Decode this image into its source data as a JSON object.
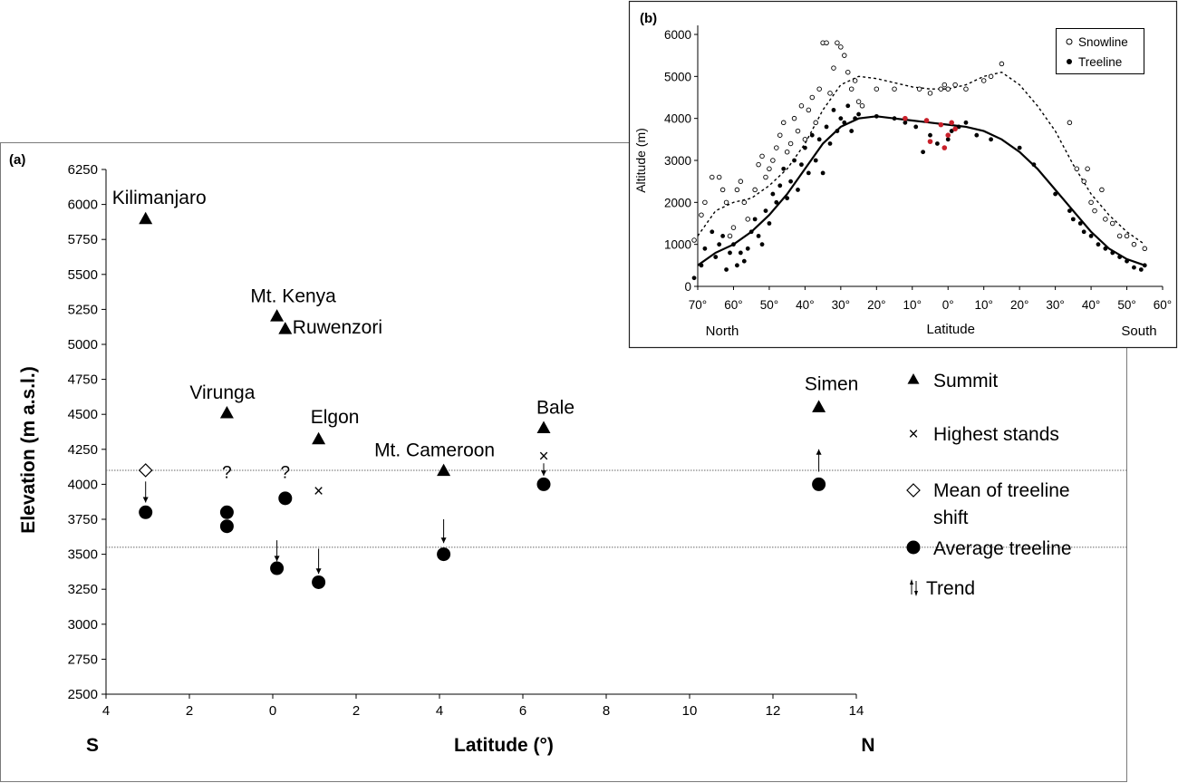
{
  "chart_data": [
    {
      "panel_label": "(a)",
      "type": "scatter",
      "xlabel": "Latitude (°)",
      "ylabel": "Elevation (m a.s.l.)",
      "x_direction_left": "S",
      "x_direction_right": "N",
      "xlim": [
        -4,
        14
      ],
      "ylim": [
        2500,
        6250
      ],
      "x_ticks": [
        -4,
        -2,
        0,
        2,
        4,
        6,
        8,
        10,
        12,
        14
      ],
      "x_tick_labels": [
        "4",
        "2",
        "0",
        "2",
        "4",
        "6",
        "8",
        "10",
        "12",
        "14"
      ],
      "y_ticks": [
        2500,
        2750,
        3000,
        3250,
        3500,
        3750,
        4000,
        4250,
        4500,
        4750,
        5000,
        5250,
        5500,
        5750,
        6000,
        6250
      ],
      "y_tick_labels": [
        "2500",
        "2750",
        "3000",
        "3250",
        "3500",
        "3750",
        "4000",
        "4250",
        "4500",
        "4750",
        "5000",
        "5250",
        "5500",
        "5750",
        "6000",
        "6250"
      ],
      "reference_lines": [
        4100,
        3550
      ],
      "summits": [
        {
          "name": "Kilimanjaro",
          "x": -3.05,
          "y": 5895
        },
        {
          "name": "Mt. Kenya",
          "x": 0.1,
          "y": 5199
        },
        {
          "name": "Ruwenzori",
          "x": 0.3,
          "y": 5109
        },
        {
          "name": "Virunga",
          "x": -1.1,
          "y": 4507
        },
        {
          "name": "Elgon",
          "x": 1.1,
          "y": 4321
        },
        {
          "name": "Mt. Cameroon",
          "x": 4.1,
          "y": 4095
        },
        {
          "name": "Bale",
          "x": 6.5,
          "y": 4400
        },
        {
          "name": "Simen",
          "x": 13.1,
          "y": 4550
        }
      ],
      "highest_stands": [
        {
          "x": 1.1,
          "y": 3950
        },
        {
          "x": 6.5,
          "y": 4200
        }
      ],
      "treeline_shift_mean": [
        {
          "x": -3.05,
          "y": 4100
        }
      ],
      "average_treeline": [
        {
          "x": -3.05,
          "y": 3800
        },
        {
          "x": -1.1,
          "y": 3800
        },
        {
          "x": -1.1,
          "y": 3700
        },
        {
          "x": 0.1,
          "y": 3400
        },
        {
          "x": 0.3,
          "y": 3900
        },
        {
          "x": 1.1,
          "y": 3300
        },
        {
          "x": 4.1,
          "y": 3500
        },
        {
          "x": 6.5,
          "y": 4000
        },
        {
          "x": 13.1,
          "y": 4000
        }
      ],
      "question_marks": [
        {
          "text": "?",
          "x": -1.1,
          "y": 4090
        },
        {
          "text": "?",
          "x": 0.3,
          "y": 4090
        }
      ],
      "trends": [
        {
          "x": -3.05,
          "from": 4020,
          "to": 3870
        },
        {
          "x": 0.1,
          "from": 3600,
          "to": 3450
        },
        {
          "x": 1.1,
          "from": 3540,
          "to": 3360
        },
        {
          "x": 4.1,
          "from": 3750,
          "to": 3580
        },
        {
          "x": 6.5,
          "from": 4150,
          "to": 4060
        },
        {
          "x": 13.1,
          "from": 4090,
          "to": 4250
        }
      ],
      "legend": {
        "summit": "Summit",
        "highest_stands": "Highest stands",
        "treeline_shift_line1": "Mean of treeline",
        "treeline_shift_line2": "shift",
        "average_treeline": "Average treeline",
        "trend": "Trend",
        "placement": "right"
      }
    },
    {
      "panel_label": "(b)",
      "type": "scatter",
      "xlabel": "Latitude",
      "ylabel": "Altitude (m)",
      "x_direction_left": "North",
      "x_direction_right": "South",
      "xlim": [
        -70,
        60
      ],
      "ylim": [
        0,
        6000
      ],
      "x_ticks": [
        -70,
        -60,
        -50,
        -40,
        -30,
        -20,
        -10,
        0,
        10,
        20,
        30,
        40,
        50,
        60
      ],
      "x_tick_labels": [
        "70°",
        "60°",
        "50°",
        "40°",
        "30°",
        "20°",
        "10°",
        "0°",
        "10°",
        "20°",
        "30°",
        "40°",
        "50°",
        "60°"
      ],
      "y_ticks": [
        0,
        1000,
        2000,
        3000,
        4000,
        5000,
        6000
      ],
      "y_tick_labels": [
        "0",
        "1000",
        "2000",
        "3000",
        "4000",
        "5000",
        "6000"
      ],
      "legend": {
        "snowline": "Snowline",
        "treeline": "Treeline",
        "placement": "top-right"
      },
      "snowline_curve": [
        [
          -70,
          1200
        ],
        [
          -65,
          1800
        ],
        [
          -60,
          2000
        ],
        [
          -55,
          2100
        ],
        [
          -50,
          2400
        ],
        [
          -45,
          2800
        ],
        [
          -40,
          3400
        ],
        [
          -35,
          4200
        ],
        [
          -30,
          4800
        ],
        [
          -25,
          5000
        ],
        [
          -20,
          4950
        ],
        [
          -15,
          4850
        ],
        [
          -10,
          4750
        ],
        [
          -5,
          4700
        ],
        [
          0,
          4700
        ],
        [
          5,
          4800
        ],
        [
          10,
          5000
        ],
        [
          15,
          5100
        ],
        [
          20,
          4800
        ],
        [
          25,
          4300
        ],
        [
          30,
          3700
        ],
        [
          35,
          2900
        ],
        [
          40,
          2200
        ],
        [
          45,
          1700
        ],
        [
          50,
          1300
        ],
        [
          55,
          1000
        ]
      ],
      "treeline_curve": [
        [
          -70,
          500
        ],
        [
          -65,
          800
        ],
        [
          -60,
          1000
        ],
        [
          -55,
          1300
        ],
        [
          -50,
          1700
        ],
        [
          -45,
          2200
        ],
        [
          -40,
          2800
        ],
        [
          -35,
          3400
        ],
        [
          -30,
          3800
        ],
        [
          -25,
          4000
        ],
        [
          -20,
          4050
        ],
        [
          -15,
          4000
        ],
        [
          -10,
          3950
        ],
        [
          -5,
          3900
        ],
        [
          0,
          3850
        ],
        [
          5,
          3800
        ],
        [
          10,
          3700
        ],
        [
          15,
          3500
        ],
        [
          20,
          3200
        ],
        [
          25,
          2800
        ],
        [
          30,
          2300
        ],
        [
          35,
          1800
        ],
        [
          40,
          1300
        ],
        [
          45,
          900
        ],
        [
          50,
          650
        ],
        [
          55,
          500
        ]
      ],
      "snowline_points": [
        [
          -71,
          1100
        ],
        [
          -69,
          1700
        ],
        [
          -68,
          2000
        ],
        [
          -66,
          2600
        ],
        [
          -64,
          2600
        ],
        [
          -63,
          2300
        ],
        [
          -62,
          2000
        ],
        [
          -61,
          1200
        ],
        [
          -60,
          1400
        ],
        [
          -59,
          2300
        ],
        [
          -58,
          2500
        ],
        [
          -57,
          2000
        ],
        [
          -56,
          1600
        ],
        [
          -54,
          2300
        ],
        [
          -53,
          2900
        ],
        [
          -52,
          3100
        ],
        [
          -51,
          2600
        ],
        [
          -50,
          2800
        ],
        [
          -49,
          3000
        ],
        [
          -48,
          3300
        ],
        [
          -47,
          3600
        ],
        [
          -46,
          3900
        ],
        [
          -45,
          3200
        ],
        [
          -44,
          3400
        ],
        [
          -43,
          4000
        ],
        [
          -42,
          3700
        ],
        [
          -41,
          4300
        ],
        [
          -40,
          3500
        ],
        [
          -39,
          4200
        ],
        [
          -38,
          4500
        ],
        [
          -37,
          3900
        ],
        [
          -36,
          4700
        ],
        [
          -35,
          5800
        ],
        [
          -34,
          5800
        ],
        [
          -33,
          4600
        ],
        [
          -32,
          5200
        ],
        [
          -31,
          5800
        ],
        [
          -30,
          5700
        ],
        [
          -29,
          5500
        ],
        [
          -28,
          5100
        ],
        [
          -27,
          4700
        ],
        [
          -26,
          4900
        ],
        [
          -25,
          4400
        ],
        [
          -24,
          4300
        ],
        [
          -20,
          4700
        ],
        [
          -15,
          4700
        ],
        [
          -8,
          4700
        ],
        [
          -5,
          4600
        ],
        [
          -2,
          4700
        ],
        [
          -1,
          4800
        ],
        [
          0,
          4700
        ],
        [
          2,
          4800
        ],
        [
          5,
          4700
        ],
        [
          10,
          4900
        ],
        [
          12,
          5000
        ],
        [
          15,
          5300
        ],
        [
          34,
          3900
        ],
        [
          36,
          2800
        ],
        [
          38,
          2500
        ],
        [
          39,
          2800
        ],
        [
          40,
          2000
        ],
        [
          41,
          1800
        ],
        [
          43,
          2300
        ],
        [
          44,
          1600
        ],
        [
          46,
          1500
        ],
        [
          48,
          1200
        ],
        [
          50,
          1200
        ],
        [
          52,
          1000
        ],
        [
          55,
          900
        ]
      ],
      "treeline_points": [
        [
          -71,
          200
        ],
        [
          -69,
          500
        ],
        [
          -68,
          900
        ],
        [
          -66,
          1300
        ],
        [
          -65,
          700
        ],
        [
          -64,
          1000
        ],
        [
          -63,
          1200
        ],
        [
          -62,
          400
        ],
        [
          -61,
          800
        ],
        [
          -60,
          1000
        ],
        [
          -59,
          500
        ],
        [
          -58,
          800
        ],
        [
          -57,
          600
        ],
        [
          -56,
          900
        ],
        [
          -55,
          1300
        ],
        [
          -54,
          1600
        ],
        [
          -53,
          1200
        ],
        [
          -52,
          1000
        ],
        [
          -51,
          1800
        ],
        [
          -50,
          1500
        ],
        [
          -49,
          2200
        ],
        [
          -48,
          2000
        ],
        [
          -47,
          2400
        ],
        [
          -46,
          2800
        ],
        [
          -45,
          2100
        ],
        [
          -44,
          2500
        ],
        [
          -43,
          3000
        ],
        [
          -42,
          2300
        ],
        [
          -41,
          2900
        ],
        [
          -40,
          3300
        ],
        [
          -39,
          2700
        ],
        [
          -38,
          3600
        ],
        [
          -37,
          3000
        ],
        [
          -36,
          3500
        ],
        [
          -35,
          2700
        ],
        [
          -34,
          3800
        ],
        [
          -33,
          3400
        ],
        [
          -32,
          4200
        ],
        [
          -31,
          3700
        ],
        [
          -30,
          4000
        ],
        [
          -29,
          3900
        ],
        [
          -28,
          4300
        ],
        [
          -27,
          3700
        ],
        [
          -26,
          4000
        ],
        [
          -25,
          4100
        ],
        [
          -20,
          4050
        ],
        [
          -15,
          4000
        ],
        [
          -12,
          3900
        ],
        [
          -9,
          3800
        ],
        [
          -7,
          3200
        ],
        [
          -5,
          3600
        ],
        [
          -3,
          3400
        ],
        [
          -1,
          3300
        ],
        [
          0,
          3500
        ],
        [
          1,
          3700
        ],
        [
          3,
          3800
        ],
        [
          5,
          3900
        ],
        [
          8,
          3600
        ],
        [
          12,
          3500
        ],
        [
          20,
          3300
        ],
        [
          24,
          2900
        ],
        [
          30,
          2200
        ],
        [
          34,
          1800
        ],
        [
          35,
          1600
        ],
        [
          37,
          1500
        ],
        [
          38,
          1300
        ],
        [
          40,
          1200
        ],
        [
          42,
          1000
        ],
        [
          44,
          900
        ],
        [
          46,
          800
        ],
        [
          48,
          700
        ],
        [
          50,
          600
        ],
        [
          52,
          450
        ],
        [
          54,
          400
        ],
        [
          55,
          500
        ]
      ],
      "highlight_color": "#c8202a",
      "highlight_points": [
        [
          -12,
          4000
        ],
        [
          -6,
          3950
        ],
        [
          -5,
          3450
        ],
        [
          -2,
          3850
        ],
        [
          -1,
          3300
        ],
        [
          0,
          3600
        ],
        [
          1,
          3900
        ],
        [
          2,
          3750
        ]
      ]
    }
  ]
}
